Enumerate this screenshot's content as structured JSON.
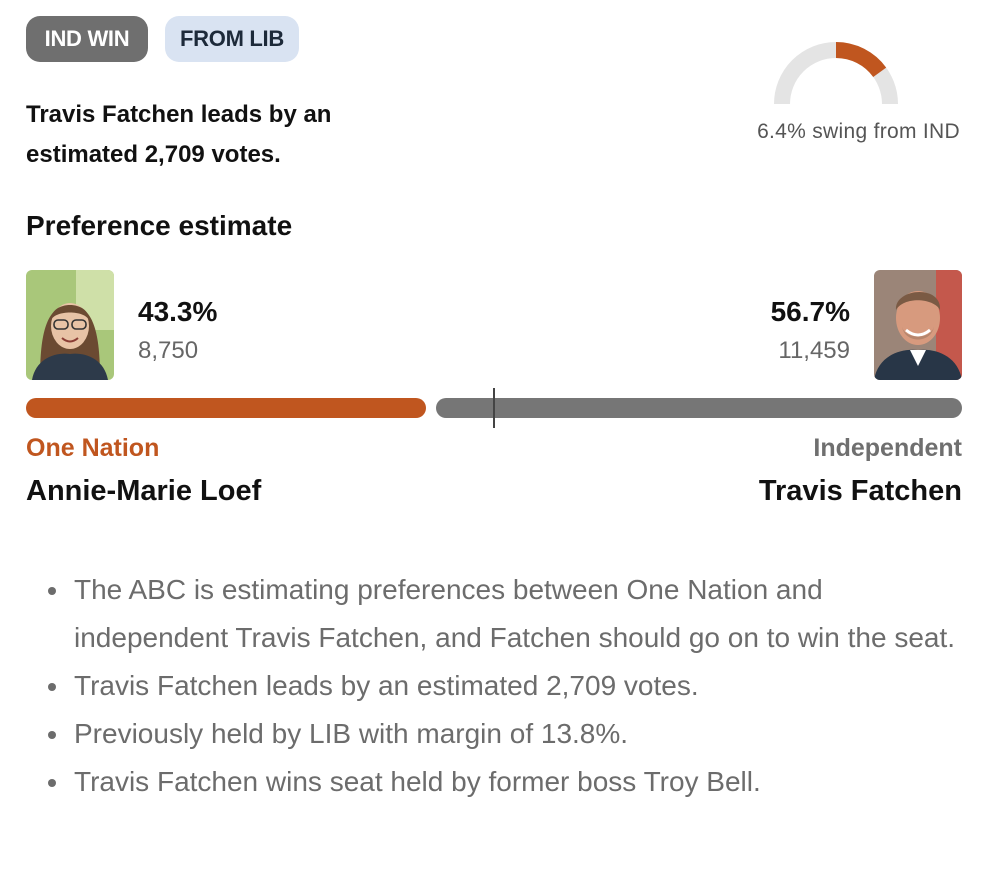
{
  "badges": {
    "result": "IND WIN",
    "from": "FROM LIB"
  },
  "headline": "Travis Fatchen leads by an estimated 2,709 votes.",
  "swing": {
    "label": "6.4% swing from IND",
    "value_percent": 6.4,
    "color": "#c0561f",
    "track_color": "#e4e4e4"
  },
  "section_title": "Preference estimate",
  "candidates": {
    "left": {
      "percent": "43.3%",
      "votes": "8,750",
      "party": "One Nation",
      "name": "Annie-Marie Loef",
      "color": "#c0561f",
      "share": 43.3
    },
    "right": {
      "percent": "56.7%",
      "votes": "11,459",
      "party": "Independent",
      "name": "Travis Fatchen",
      "color": "#767676",
      "share": 56.7
    }
  },
  "notes": [
    "The ABC is estimating preferences between One Nation and independent Travis Fatchen, and Fatchen should go on to win the seat.",
    "Travis Fatchen leads by an estimated 2,709 votes.",
    "Previously held by LIB with margin of 13.8%.",
    "Travis Fatchen wins seat held by former boss Troy Bell."
  ]
}
